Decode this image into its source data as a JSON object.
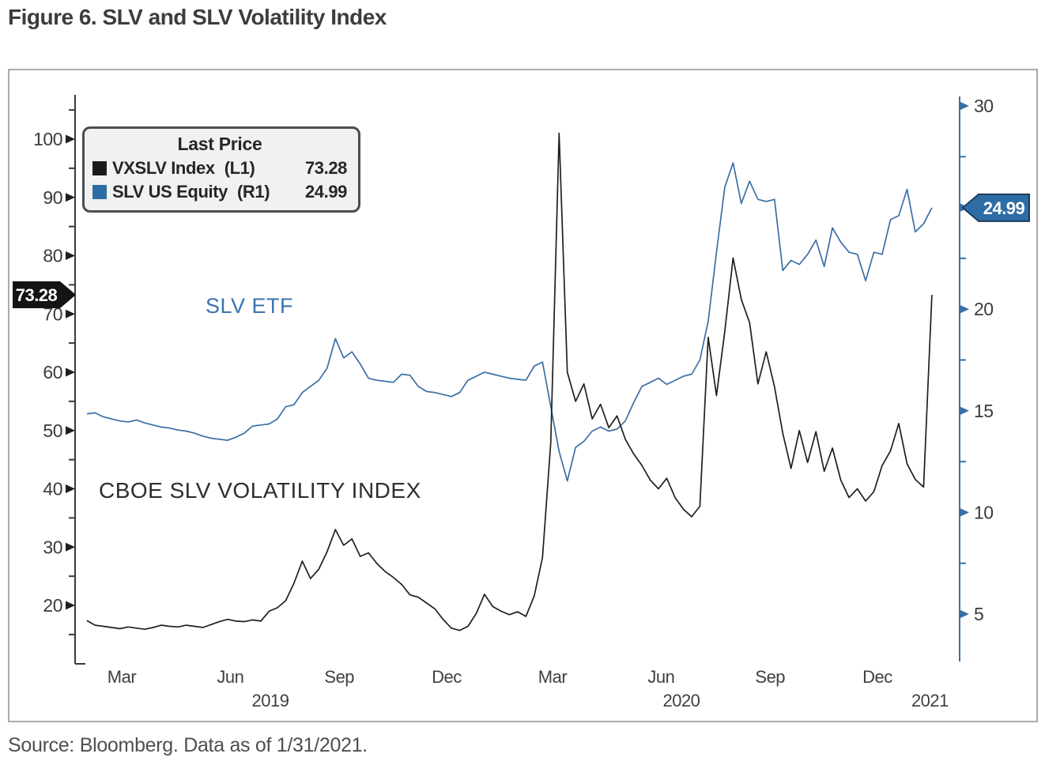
{
  "page": {
    "title": "Figure 6. SLV and SLV Volatility Index",
    "source": "Source: Bloomberg. Data as of 1/31/2021."
  },
  "legend": {
    "title": "Last Price",
    "items": [
      {
        "label": "VXSLV Index",
        "axis": "(L1)",
        "value": "73.28",
        "swatch": "#17191b"
      },
      {
        "label": "SLV US Equity",
        "axis": "(R1)",
        "value": "24.99",
        "swatch": "#2e6da4"
      }
    ]
  },
  "annotations": {
    "slv_etf": {
      "text": "SLV ETF",
      "color": "#3a73ad"
    },
    "vxslv": {
      "text": "CBOE SLV VOLATILITY INDEX",
      "color": "#2e2e2e"
    }
  },
  "chart_data": {
    "type": "line",
    "title": "Figure 6. SLV and SLV Volatility Index",
    "x_unit": "decimal_year",
    "x_range": [
      2019.09,
      2021.145
    ],
    "grid": false,
    "legend_position": "top-left",
    "x_tick_months": [
      {
        "label": "Mar",
        "t": 2019.201
      },
      {
        "label": "Jun",
        "t": 2019.453
      },
      {
        "label": "Sep",
        "t": 2019.706
      },
      {
        "label": "Dec",
        "t": 2019.955
      },
      {
        "label": "Mar",
        "t": 2020.201
      },
      {
        "label": "Jun",
        "t": 2020.453
      },
      {
        "label": "Sep",
        "t": 2020.706
      },
      {
        "label": "Dec",
        "t": 2020.955
      }
    ],
    "x_tick_years": [
      {
        "label": "2019",
        "t": 2019.546
      },
      {
        "label": "2020",
        "t": 2020.5
      },
      {
        "label": "2021",
        "t": 2021.077
      }
    ],
    "axes": {
      "left": {
        "side": "left",
        "ticks": [
          20,
          30,
          40,
          50,
          60,
          70,
          80,
          90,
          100
        ],
        "minor": [
          15,
          25,
          35,
          45,
          55,
          65,
          75,
          85,
          95,
          105
        ],
        "range": [
          10,
          107.6
        ],
        "color": "#3a3a3a",
        "label_color": "#3b3b3b",
        "last_price": 73.28,
        "tag_text": "73.28",
        "tag_bg": "#141414",
        "tag_fg": "#ffffff"
      },
      "right": {
        "side": "right",
        "ticks": [
          5,
          10,
          15,
          20,
          25,
          30
        ],
        "minor": [
          7.5,
          12.5,
          17.5,
          22.5,
          27.5
        ],
        "range": [
          2.7,
          30.5
        ],
        "color": "#3a6fa5",
        "label_color": "#3b3b3b",
        "last_price": 24.99,
        "tag_text": "24.99",
        "tag_bg": "#2e6da4",
        "tag_fg": "#ffffff",
        "tag_border": "#1b3a5c"
      }
    },
    "series": [
      {
        "name": "VXSLV Index",
        "legend_axis": "(L1)",
        "axis": "left",
        "color": "#1f1f1f",
        "t_start": 2019.12,
        "t_step": 0.019231,
        "last_price": 73.28,
        "values": [
          17.4,
          16.6,
          16.4,
          16.2,
          16.0,
          16.3,
          16.1,
          15.9,
          16.2,
          16.6,
          16.4,
          16.3,
          16.6,
          16.4,
          16.2,
          16.7,
          17.2,
          17.6,
          17.3,
          17.2,
          17.5,
          17.3,
          19.0,
          19.6,
          20.8,
          23.8,
          27.6,
          24.6,
          26.2,
          29.2,
          33.0,
          30.3,
          31.4,
          28.4,
          29.0,
          27.2,
          25.8,
          24.8,
          23.6,
          21.8,
          21.4,
          20.4,
          19.4,
          17.6,
          16.1,
          15.7,
          16.4,
          18.6,
          21.9,
          19.8,
          19.0,
          18.4,
          18.9,
          18.1,
          21.6,
          28.2,
          48.0,
          101.0,
          60.0,
          55.0,
          58.0,
          52.0,
          54.5,
          50.5,
          52.5,
          48.5,
          46.0,
          44.0,
          41.5,
          40.0,
          41.8,
          38.5,
          36.5,
          35.2,
          37.0,
          66.0,
          56.0,
          67.0,
          79.6,
          72.5,
          68.5,
          58.0,
          63.5,
          57.5,
          49.5,
          43.5,
          50.0,
          44.5,
          49.8,
          43.0,
          47.0,
          41.5,
          38.5,
          40.0,
          37.9,
          39.5,
          44.0,
          46.5,
          51.2,
          44.3,
          41.6,
          40.3,
          73.28
        ]
      },
      {
        "name": "SLV US Equity",
        "legend_axis": "(R1)",
        "axis": "right",
        "color": "#3a6fa5",
        "t_start": 2019.12,
        "t_step": 0.019231,
        "last_price": 24.99,
        "values": [
          14.85,
          14.9,
          14.7,
          14.6,
          14.5,
          14.45,
          14.55,
          14.4,
          14.3,
          14.2,
          14.15,
          14.05,
          14.0,
          13.9,
          13.75,
          13.65,
          13.6,
          13.55,
          13.7,
          13.9,
          14.25,
          14.3,
          14.35,
          14.6,
          15.2,
          15.3,
          15.9,
          16.2,
          16.5,
          17.1,
          18.55,
          17.6,
          17.9,
          17.3,
          16.6,
          16.5,
          16.45,
          16.4,
          16.8,
          16.75,
          16.2,
          15.95,
          15.9,
          15.8,
          15.7,
          15.9,
          16.5,
          16.7,
          16.9,
          16.8,
          16.7,
          16.6,
          16.55,
          16.5,
          17.2,
          17.4,
          15.2,
          13.0,
          11.55,
          13.2,
          13.5,
          14.0,
          14.2,
          14.0,
          14.1,
          14.5,
          15.4,
          16.2,
          16.4,
          16.6,
          16.3,
          16.5,
          16.7,
          16.8,
          17.5,
          19.4,
          22.8,
          26.0,
          27.2,
          25.2,
          26.3,
          25.4,
          25.3,
          25.4,
          21.9,
          22.4,
          22.2,
          22.7,
          23.4,
          22.1,
          24.0,
          23.3,
          22.8,
          22.7,
          21.4,
          22.8,
          22.7,
          24.4,
          24.6,
          25.9,
          23.8,
          24.2,
          24.99
        ]
      }
    ]
  }
}
